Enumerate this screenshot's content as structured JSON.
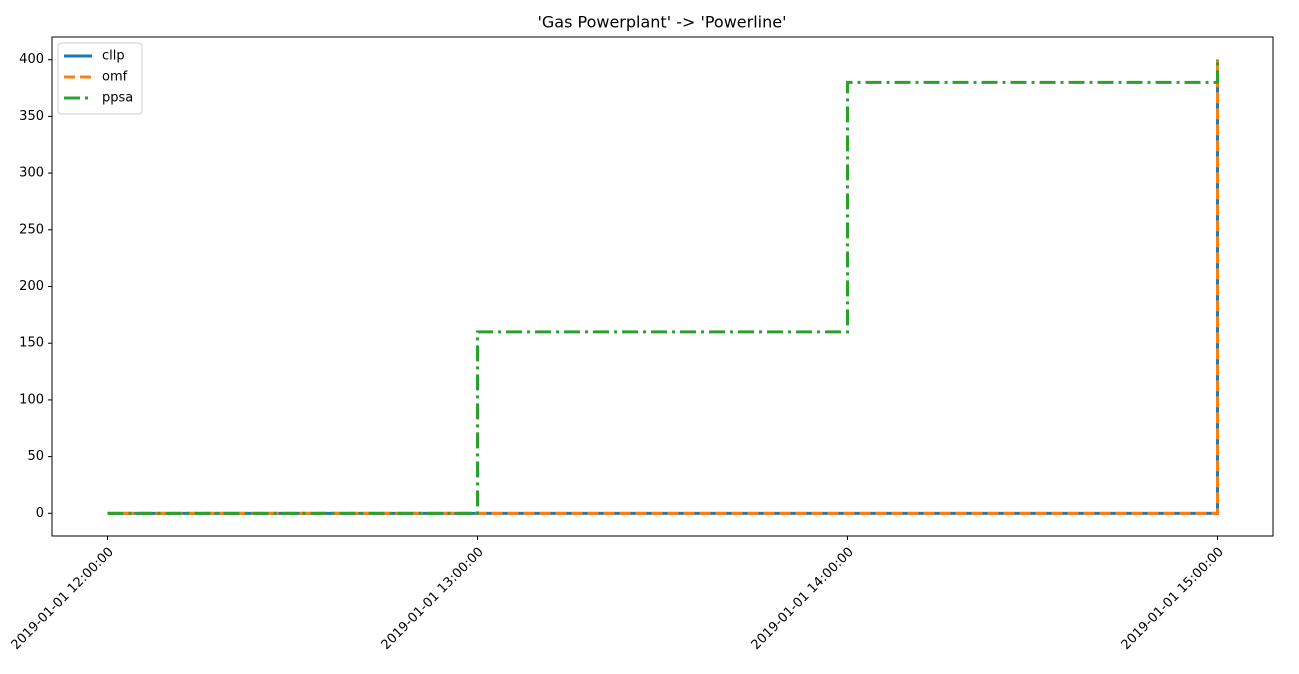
{
  "chart_data": {
    "type": "line",
    "title": "'Gas Powerplant' -> 'Powerline'",
    "step": "post",
    "x": [
      "2019-01-01 12:00:00",
      "2019-01-01 13:00:00",
      "2019-01-01 14:00:00",
      "2019-01-01 15:00:00"
    ],
    "series": [
      {
        "name": "cllp",
        "color": "#1f77b4",
        "linestyle": "solid",
        "values": [
          0,
          0,
          0,
          400
        ]
      },
      {
        "name": "omf",
        "color": "#ff7f0e",
        "linestyle": "dashed",
        "values": [
          0,
          0,
          0,
          400
        ]
      },
      {
        "name": "ppsa",
        "color": "#2ca02c",
        "linestyle": "dashdot",
        "values": [
          0,
          160,
          380,
          400
        ]
      }
    ],
    "ylim": [
      -20,
      420
    ],
    "yticks": [
      0,
      50,
      100,
      150,
      200,
      250,
      300,
      350,
      400
    ],
    "legend": "upper left",
    "grid": false
  }
}
